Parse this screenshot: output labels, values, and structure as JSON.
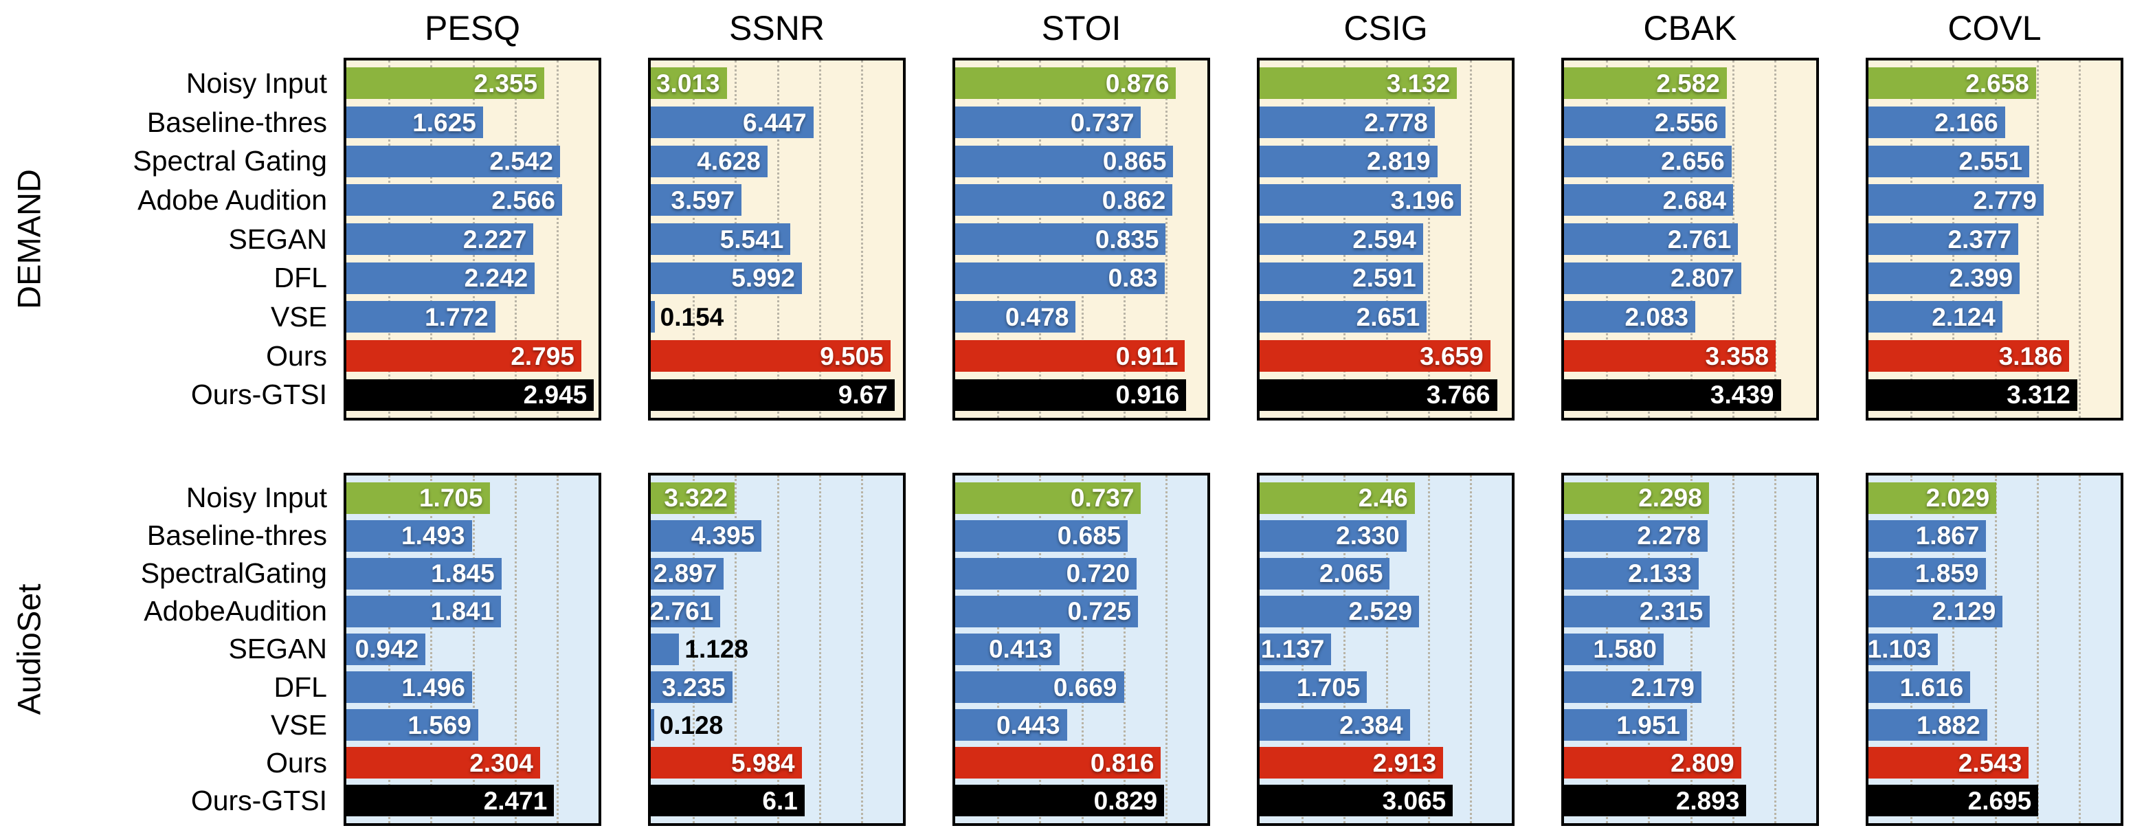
{
  "figure": {
    "titles": [
      "PESQ",
      "SSNR",
      "STOI",
      "CSIG",
      "CBAK",
      "COVL"
    ],
    "colors": {
      "bar_green": "#8cb43e",
      "bar_blue": "#4a7bbd",
      "bar_red": "#d52b14",
      "bar_black": "#000000",
      "bg_demand": "#fbf3dd",
      "bg_audioset": "#ddecf8",
      "frame": "#000000",
      "gridline": "#b9b4a6"
    },
    "method_color_roles": [
      "green",
      "blue",
      "blue",
      "blue",
      "blue",
      "blue",
      "blue",
      "red",
      "black"
    ],
    "rows": [
      {
        "dataset": "DEMAND",
        "background": "#fbf3dd",
        "methods": [
          "Noisy Input",
          "Baseline-thres",
          "Spectral Gating",
          "Adobe Audition",
          "SEGAN",
          "DFL",
          "VSE",
          "Ours",
          "Ours-GTSI"
        ]
      },
      {
        "dataset": "AudioSet",
        "background": "#ddecf8",
        "methods": [
          "Noisy Input",
          "Baseline-thres",
          "SpectralGating",
          "AdobeAudition",
          "SEGAN",
          "DFL",
          "VSE",
          "Ours",
          "Ours-GTSI"
        ]
      }
    ]
  },
  "chart_data": [
    {
      "type": "bar",
      "orientation": "horizontal",
      "dataset": "DEMAND",
      "title": "PESQ",
      "categories": [
        "Noisy Input",
        "Baseline-thres",
        "Spectral Gating",
        "Adobe Audition",
        "SEGAN",
        "DFL",
        "VSE",
        "Ours",
        "Ours-GTSI"
      ],
      "values": [
        2.355,
        1.625,
        2.542,
        2.566,
        2.227,
        2.242,
        1.772,
        2.795,
        2.945
      ],
      "value_labels": [
        "2.355",
        "1.625",
        "2.542",
        "2.566",
        "2.227",
        "2.242",
        "1.772",
        "2.795",
        "2.945"
      ],
      "xlim": [
        0,
        3
      ],
      "grid": "dotted-vertical",
      "background": "#fbf3dd"
    },
    {
      "type": "bar",
      "orientation": "horizontal",
      "dataset": "DEMAND",
      "title": "SSNR",
      "categories": [
        "Noisy Input",
        "Baseline-thres",
        "Spectral Gating",
        "Adobe Audition",
        "SEGAN",
        "DFL",
        "VSE",
        "Ours",
        "Ours-GTSI"
      ],
      "values": [
        3.013,
        6.447,
        4.628,
        3.597,
        5.541,
        5.992,
        0.154,
        9.505,
        9.67
      ],
      "value_labels": [
        "3.013",
        "6.447",
        "4.628",
        "3.597",
        "5.541",
        "5.992",
        "0.154",
        "9.505",
        "9.67"
      ],
      "xlim": [
        0,
        10
      ],
      "grid": "dotted-vertical",
      "background": "#fbf3dd"
    },
    {
      "type": "bar",
      "orientation": "horizontal",
      "dataset": "DEMAND",
      "title": "STOI",
      "categories": [
        "Noisy Input",
        "Baseline-thres",
        "Spectral Gating",
        "Adobe Audition",
        "SEGAN",
        "DFL",
        "VSE",
        "Ours",
        "Ours-GTSI"
      ],
      "values": [
        0.876,
        0.737,
        0.865,
        0.862,
        0.835,
        0.83,
        0.478,
        0.911,
        0.916
      ],
      "value_labels": [
        "0.876",
        "0.737",
        "0.865",
        "0.862",
        "0.835",
        "0.83",
        "0.478",
        "0.911",
        "0.916"
      ],
      "xlim": [
        0,
        1
      ],
      "grid": "dotted-vertical",
      "background": "#fbf3dd"
    },
    {
      "type": "bar",
      "orientation": "horizontal",
      "dataset": "DEMAND",
      "title": "CSIG",
      "categories": [
        "Noisy Input",
        "Baseline-thres",
        "Spectral Gating",
        "Adobe Audition",
        "SEGAN",
        "DFL",
        "VSE",
        "Ours",
        "Ours-GTSI"
      ],
      "values": [
        3.132,
        2.778,
        2.819,
        3.196,
        2.594,
        2.591,
        2.651,
        3.659,
        3.766
      ],
      "value_labels": [
        "3.132",
        "2.778",
        "2.819",
        "3.196",
        "2.594",
        "2.591",
        "2.651",
        "3.659",
        "3.766"
      ],
      "xlim": [
        0,
        4
      ],
      "grid": "dotted-vertical",
      "background": "#fbf3dd"
    },
    {
      "type": "bar",
      "orientation": "horizontal",
      "dataset": "DEMAND",
      "title": "CBAK",
      "categories": [
        "Noisy Input",
        "Baseline-thres",
        "Spectral Gating",
        "Adobe Audition",
        "SEGAN",
        "DFL",
        "VSE",
        "Ours",
        "Ours-GTSI"
      ],
      "values": [
        2.582,
        2.556,
        2.656,
        2.684,
        2.761,
        2.807,
        2.083,
        3.358,
        3.439
      ],
      "value_labels": [
        "2.582",
        "2.556",
        "2.656",
        "2.684",
        "2.761",
        "2.807",
        "2.083",
        "3.358",
        "3.439"
      ],
      "xlim": [
        0,
        4
      ],
      "grid": "dotted-vertical",
      "background": "#fbf3dd"
    },
    {
      "type": "bar",
      "orientation": "horizontal",
      "dataset": "DEMAND",
      "title": "COVL",
      "categories": [
        "Noisy Input",
        "Baseline-thres",
        "Spectral Gating",
        "Adobe Audition",
        "SEGAN",
        "DFL",
        "VSE",
        "Ours",
        "Ours-GTSI"
      ],
      "values": [
        2.658,
        2.166,
        2.551,
        2.779,
        2.377,
        2.399,
        2.124,
        3.186,
        3.312
      ],
      "value_labels": [
        "2.658",
        "2.166",
        "2.551",
        "2.779",
        "2.377",
        "2.399",
        "2.124",
        "3.186",
        "3.312"
      ],
      "xlim": [
        0,
        4
      ],
      "grid": "dotted-vertical",
      "background": "#fbf3dd"
    },
    {
      "type": "bar",
      "orientation": "horizontal",
      "dataset": "AudioSet",
      "title": "PESQ",
      "categories": [
        "Noisy Input",
        "Baseline-thres",
        "SpectralGating",
        "AdobeAudition",
        "SEGAN",
        "DFL",
        "VSE",
        "Ours",
        "Ours-GTSI"
      ],
      "values": [
        1.705,
        1.493,
        1.845,
        1.841,
        0.942,
        1.496,
        1.569,
        2.304,
        2.471
      ],
      "value_labels": [
        "1.705",
        "1.493",
        "1.845",
        "1.841",
        "0.942",
        "1.496",
        "1.569",
        "2.304",
        "2.471"
      ],
      "xlim": [
        0,
        3
      ],
      "grid": "dotted-vertical",
      "background": "#ddecf8"
    },
    {
      "type": "bar",
      "orientation": "horizontal",
      "dataset": "AudioSet",
      "title": "SSNR",
      "categories": [
        "Noisy Input",
        "Baseline-thres",
        "SpectralGating",
        "AdobeAudition",
        "SEGAN",
        "DFL",
        "VSE",
        "Ours",
        "Ours-GTSI"
      ],
      "values": [
        3.322,
        4.395,
        2.897,
        2.761,
        1.128,
        3.235,
        0.128,
        5.984,
        6.1
      ],
      "value_labels": [
        "3.322",
        "4.395",
        "2.897",
        "2.761",
        "1.128",
        "3.235",
        "0.128",
        "5.984",
        "6.1"
      ],
      "xlim": [
        0,
        10
      ],
      "grid": "dotted-vertical",
      "background": "#ddecf8"
    },
    {
      "type": "bar",
      "orientation": "horizontal",
      "dataset": "AudioSet",
      "title": "STOI",
      "categories": [
        "Noisy Input",
        "Baseline-thres",
        "SpectralGating",
        "AdobeAudition",
        "SEGAN",
        "DFL",
        "VSE",
        "Ours",
        "Ours-GTSI"
      ],
      "values": [
        0.737,
        0.685,
        0.72,
        0.725,
        0.413,
        0.669,
        0.443,
        0.816,
        0.829
      ],
      "value_labels": [
        "0.737",
        "0.685",
        "0.720",
        "0.725",
        "0.413",
        "0.669",
        "0.443",
        "0.816",
        "0.829"
      ],
      "xlim": [
        0,
        1
      ],
      "grid": "dotted-vertical",
      "background": "#ddecf8"
    },
    {
      "type": "bar",
      "orientation": "horizontal",
      "dataset": "AudioSet",
      "title": "CSIG",
      "categories": [
        "Noisy Input",
        "Baseline-thres",
        "SpectralGating",
        "AdobeAudition",
        "SEGAN",
        "DFL",
        "VSE",
        "Ours",
        "Ours-GTSI"
      ],
      "values": [
        2.46,
        2.33,
        2.065,
        2.529,
        1.137,
        1.705,
        2.384,
        2.913,
        3.065
      ],
      "value_labels": [
        "2.46",
        "2.330",
        "2.065",
        "2.529",
        "1.137",
        "1.705",
        "2.384",
        "2.913",
        "3.065"
      ],
      "xlim": [
        0,
        4
      ],
      "grid": "dotted-vertical",
      "background": "#ddecf8"
    },
    {
      "type": "bar",
      "orientation": "horizontal",
      "dataset": "AudioSet",
      "title": "CBAK",
      "categories": [
        "Noisy Input",
        "Baseline-thres",
        "SpectralGating",
        "AdobeAudition",
        "SEGAN",
        "DFL",
        "VSE",
        "Ours",
        "Ours-GTSI"
      ],
      "values": [
        2.298,
        2.278,
        2.133,
        2.315,
        1.58,
        2.179,
        1.951,
        2.809,
        2.893
      ],
      "value_labels": [
        "2.298",
        "2.278",
        "2.133",
        "2.315",
        "1.580",
        "2.179",
        "1.951",
        "2.809",
        "2.893"
      ],
      "xlim": [
        0,
        4
      ],
      "grid": "dotted-vertical",
      "background": "#ddecf8"
    },
    {
      "type": "bar",
      "orientation": "horizontal",
      "dataset": "AudioSet",
      "title": "COVL",
      "categories": [
        "Noisy Input",
        "Baseline-thres",
        "SpectralGating",
        "AdobeAudition",
        "SEGAN",
        "DFL",
        "VSE",
        "Ours",
        "Ours-GTSI"
      ],
      "values": [
        2.029,
        1.867,
        1.859,
        2.129,
        1.103,
        1.616,
        1.882,
        2.543,
        2.695
      ],
      "value_labels": [
        "2.029",
        "1.867",
        "1.859",
        "2.129",
        "1.103",
        "1.616",
        "1.882",
        "2.543",
        "2.695"
      ],
      "xlim": [
        0,
        4
      ],
      "grid": "dotted-vertical",
      "background": "#ddecf8"
    }
  ]
}
